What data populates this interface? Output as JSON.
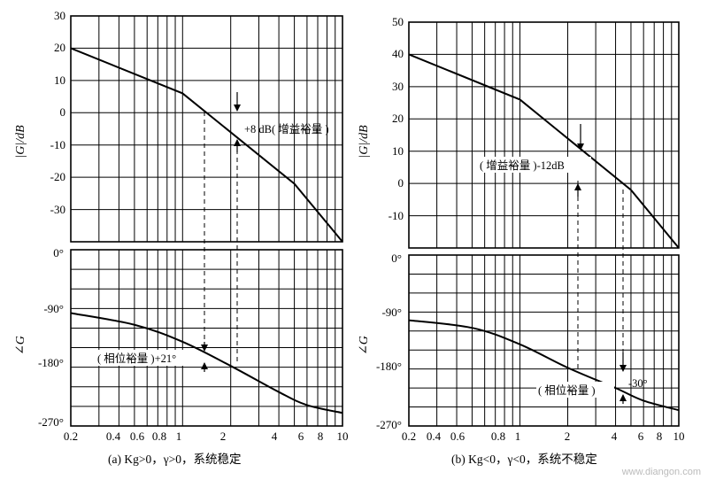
{
  "chart_data": [
    {
      "panel": "a",
      "type": "line",
      "caption": "(a) Kg>0，γ>0，系统稳定",
      "x_scale": "log",
      "xlim": [
        0.2,
        10
      ],
      "x_tick_labels": [
        "0.2",
        "0.4",
        "0.6",
        "0.8",
        "1",
        "2",
        "4",
        "6",
        "8",
        "10"
      ],
      "magnitude": {
        "ylabel": "|G|/dB",
        "ylim": [
          -40,
          30
        ],
        "y_tick_labels": [
          "30",
          "20",
          "10",
          "0",
          "-10",
          "-20",
          "-30"
        ],
        "x": [
          0.2,
          1.0,
          5.0,
          10.0
        ],
        "y": [
          20,
          6,
          -22,
          -40
        ]
      },
      "phase": {
        "ylabel": "∠G",
        "ylim": [
          -270,
          0
        ],
        "y_tick_labels": [
          "0°",
          "-90°",
          "-180°",
          "-270°"
        ],
        "x": [
          0.2,
          0.5,
          1.0,
          2.0,
          4.0,
          6.0,
          10.0
        ],
        "y": [
          -97,
          -115,
          -141,
          -178,
          -218,
          -238,
          -250
        ]
      },
      "annotations": {
        "gain_margin": "+8 dB( 增益裕量 )",
        "phase_margin": "( 相位裕量 )+21°"
      }
    },
    {
      "panel": "b",
      "type": "line",
      "caption": "(b) Kg<0，γ<0，系统不稳定",
      "x_scale": "log",
      "xlim": [
        0.2,
        10
      ],
      "x_tick_labels": [
        "0.2",
        "0.4",
        "0.6",
        "0.8",
        "1",
        "2",
        "4",
        "6",
        "8",
        "10"
      ],
      "magnitude": {
        "ylabel": "|G|/dB",
        "ylim": [
          -20,
          50
        ],
        "y_tick_labels": [
          "50",
          "40",
          "30",
          "20",
          "10",
          "0",
          "-10"
        ],
        "x": [
          0.2,
          1.0,
          5.0,
          10.0
        ],
        "y": [
          40,
          26,
          -2,
          -20
        ]
      },
      "phase": {
        "ylabel": "∠G",
        "ylim": [
          -270,
          0
        ],
        "y_tick_labels": [
          "0°",
          "-90°",
          "-180°",
          "-270°"
        ],
        "x": [
          0.2,
          0.5,
          1.0,
          2.0,
          4.0,
          6.0,
          10.0
        ],
        "y": [
          -103,
          -115,
          -141,
          -178,
          -210,
          -230,
          -245
        ]
      },
      "annotations": {
        "gain_margin": "( 增益裕量 )-12dB",
        "phase_margin_label": "( 相位裕量 )",
        "phase_margin_value": "-30°"
      }
    }
  ],
  "watermark": "www.diangon.com"
}
